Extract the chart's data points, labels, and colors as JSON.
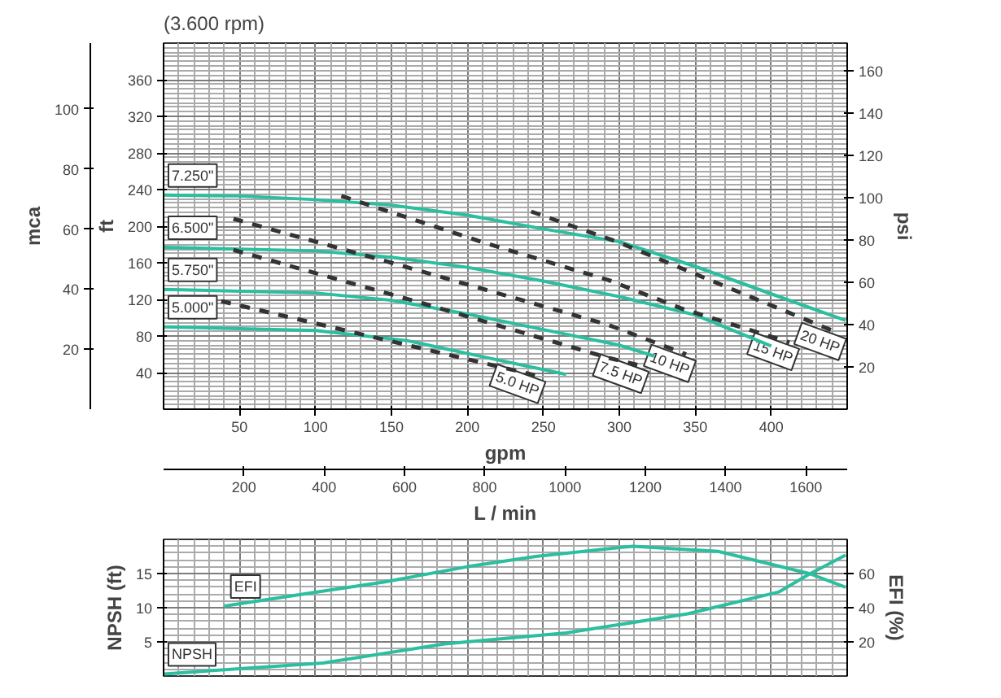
{
  "chart_data": [
    {
      "type": "line",
      "title": "(3.600 rpm)",
      "xlabel": "gpm",
      "x2label": "L / min",
      "ylabel": "ft",
      "y2label": "mca",
      "y3label": "psi",
      "xlim": [
        0,
        450
      ],
      "xticks": [
        50,
        100,
        150,
        200,
        250,
        300,
        350,
        400
      ],
      "x2lim": [
        0,
        1703
      ],
      "x2ticks": [
        200,
        400,
        600,
        800,
        1000,
        1200,
        1400,
        1600
      ],
      "ylim": [
        0,
        400
      ],
      "yticks": [
        40,
        80,
        120,
        160,
        200,
        240,
        280,
        320,
        360
      ],
      "y2lim": [
        0,
        121.9
      ],
      "y2ticks": [
        20,
        40,
        60,
        80,
        100
      ],
      "y3lim": [
        0,
        173.2
      ],
      "y3ticks": [
        20,
        40,
        60,
        80,
        100,
        120,
        140,
        160
      ],
      "grid": true,
      "series": [
        {
          "name": "7.250\"",
          "color": "#2bbf9f",
          "line_style": "solid",
          "x": [
            0,
            50,
            100,
            150,
            200,
            250,
            300,
            350,
            400,
            449
          ],
          "values": [
            234,
            233,
            229,
            223,
            212,
            197,
            183,
            156,
            126,
            97
          ]
        },
        {
          "name": "6.500\"",
          "color": "#2bbf9f",
          "line_style": "solid",
          "x": [
            0,
            100,
            150,
            200,
            250,
            300,
            350,
            400
          ],
          "values": [
            177,
            173,
            166,
            155,
            140,
            123,
            103,
            69
          ]
        },
        {
          "name": "5.750\"",
          "color": "#2bbf9f",
          "line_style": "solid",
          "x": [
            0,
            100,
            150,
            200,
            250,
            300,
            323
          ],
          "values": [
            131,
            127,
            119,
            104,
            87,
            70,
            58
          ]
        },
        {
          "name": "5.000\"",
          "color": "#2bbf9f",
          "line_style": "solid",
          "x": [
            0,
            100,
            160,
            211,
            265
          ],
          "values": [
            90,
            86,
            75,
            57,
            38
          ]
        },
        {
          "name": "20 HP",
          "color": "#333333",
          "line_style": "dashed",
          "x": [
            242,
            300,
            443
          ],
          "values": [
            216,
            182,
            84
          ]
        },
        {
          "name": "15 HP",
          "color": "#333333",
          "line_style": "dashed",
          "x": [
            117,
            211,
            293,
            341,
            412
          ],
          "values": [
            233,
            182,
            141,
            110,
            73
          ]
        },
        {
          "name": "10 HP",
          "color": "#333333",
          "line_style": "dashed",
          "x": [
            46,
            150,
            293,
            344
          ],
          "values": [
            208,
            160,
            92,
            60
          ]
        },
        {
          "name": "7.5 HP",
          "color": "#333333",
          "line_style": "dashed",
          "x": [
            46,
            170,
            293,
            313
          ],
          "values": [
            174,
            116,
            56,
            48
          ]
        },
        {
          "name": "5.0 HP",
          "color": "#333333",
          "line_style": "dashed",
          "x": [
            38,
            245
          ],
          "values": [
            118,
            37
          ]
        }
      ]
    },
    {
      "type": "line",
      "ylabel": "NPSH (ft)",
      "y2label": "EFI (%)",
      "xlim": [
        0,
        450
      ],
      "xticks": [
        50,
        100,
        150,
        200,
        250,
        300,
        350,
        400
      ],
      "tick_labels": "y",
      "ylim": [
        0,
        20
      ],
      "yticks": [
        5,
        10,
        15
      ],
      "y2lim": [
        0,
        80
      ],
      "y2ticks": [
        20,
        40,
        60
      ],
      "grid": true,
      "series": [
        {
          "name": "EFI",
          "color": "#2bbf9f",
          "line_style": "solid",
          "axis": "y2",
          "x": [
            40,
            100,
            145,
            200,
            245,
            309,
            365,
            425,
            449
          ],
          "values": [
            41,
            49,
            55,
            64,
            70,
            76,
            73,
            60,
            52
          ]
        },
        {
          "name": "NPSH",
          "color": "#2bbf9f",
          "line_style": "solid",
          "x": [
            0,
            105,
            185,
            265,
            345,
            405,
            425,
            449
          ],
          "values": [
            0.3,
            1.9,
            4.7,
            6.3,
            9.1,
            12.3,
            14.9,
            17.7
          ]
        }
      ]
    }
  ]
}
